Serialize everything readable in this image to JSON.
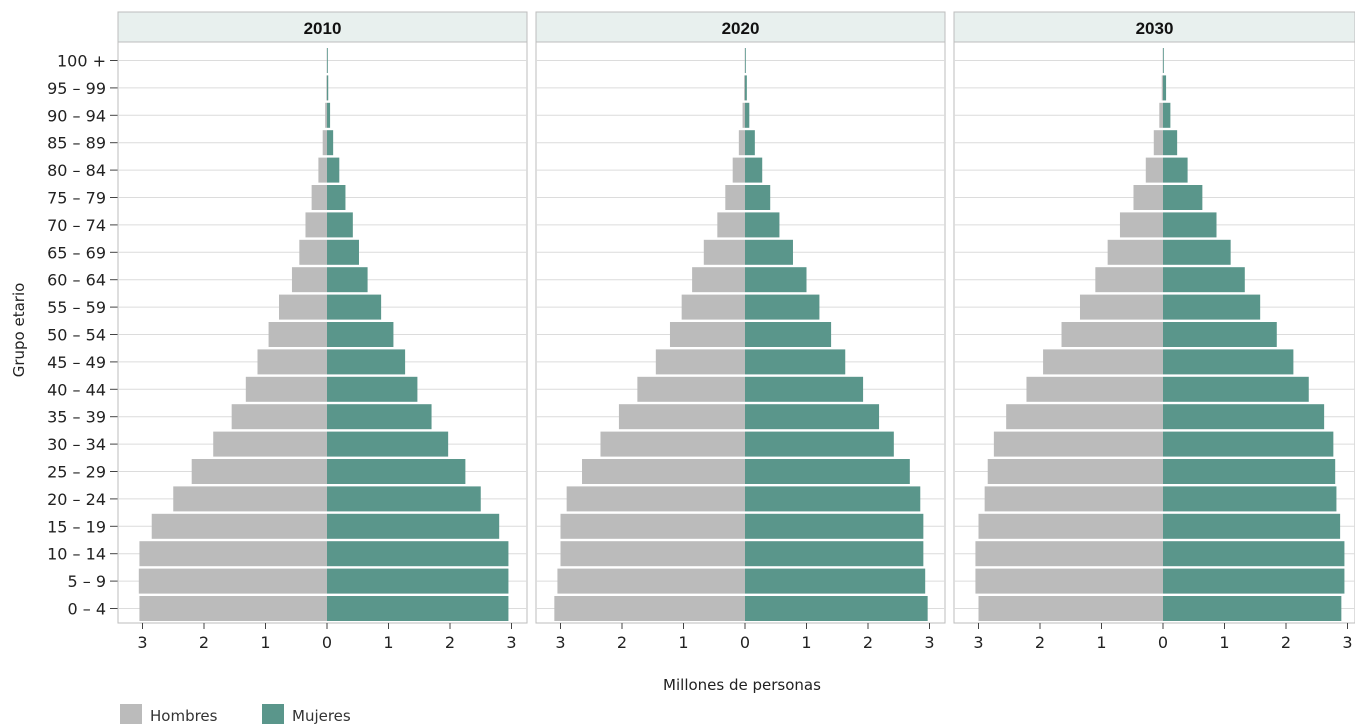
{
  "chart_data": {
    "type": "bar",
    "subtype": "population-pyramid",
    "xlabel": "Millones de personas",
    "ylabel": "Grupo etario",
    "categories": [
      "0 – 4",
      "5 – 9",
      "10 – 14",
      "15 – 19",
      "20 – 24",
      "25 – 29",
      "30 – 34",
      "35 – 39",
      "40 – 44",
      "45 – 49",
      "50 – 54",
      "55 – 59",
      "60 – 64",
      "65 – 69",
      "70 – 74",
      "75 – 79",
      "80 – 84",
      "85 – 89",
      "90 – 94",
      "95 – 99",
      "100 +"
    ],
    "x_ticks": [
      3,
      2,
      1,
      0,
      1,
      2,
      3
    ],
    "xlim": [
      -3.1,
      3.1
    ],
    "grid": true,
    "legend_position": "bottom-left",
    "legend": [
      {
        "label": "Hombres",
        "color": "#bbbbbb"
      },
      {
        "label": "Mujeres",
        "color": "#5a968b"
      }
    ],
    "colors": {
      "male": "#bbbbbb",
      "female": "#5a968b",
      "header": "#e8f0ee"
    },
    "panels": [
      {
        "title": "2010",
        "series": [
          {
            "name": "Hombres",
            "values": [
              3.05,
              3.06,
              3.05,
              2.85,
              2.5,
              2.2,
              1.85,
              1.55,
              1.32,
              1.13,
              0.95,
              0.78,
              0.57,
              0.45,
              0.35,
              0.25,
              0.14,
              0.07,
              0.03,
              0.01,
              0.005
            ]
          },
          {
            "name": "Mujeres",
            "values": [
              2.95,
              2.95,
              2.95,
              2.8,
              2.5,
              2.25,
              1.97,
              1.7,
              1.47,
              1.27,
              1.08,
              0.88,
              0.66,
              0.52,
              0.42,
              0.3,
              0.2,
              0.1,
              0.05,
              0.02,
              0.005
            ]
          }
        ]
      },
      {
        "title": "2020",
        "series": [
          {
            "name": "Hombres",
            "values": [
              3.1,
              3.05,
              3.0,
              3.0,
              2.9,
              2.65,
              2.35,
              2.05,
              1.75,
              1.45,
              1.22,
              1.03,
              0.86,
              0.67,
              0.45,
              0.32,
              0.2,
              0.1,
              0.04,
              0.015,
              0.005
            ]
          },
          {
            "name": "Mujeres",
            "values": [
              2.97,
              2.93,
              2.9,
              2.9,
              2.85,
              2.68,
              2.42,
              2.18,
              1.92,
              1.63,
              1.4,
              1.21,
              1.0,
              0.78,
              0.56,
              0.41,
              0.28,
              0.16,
              0.07,
              0.03,
              0.01
            ]
          }
        ]
      },
      {
        "title": "2030",
        "series": [
          {
            "name": "Hombres",
            "values": [
              3.0,
              3.05,
              3.05,
              3.0,
              2.9,
              2.85,
              2.75,
              2.55,
              2.22,
              1.95,
              1.65,
              1.35,
              1.1,
              0.9,
              0.7,
              0.48,
              0.28,
              0.15,
              0.06,
              0.02,
              0.005
            ]
          },
          {
            "name": "Mujeres",
            "values": [
              2.9,
              2.95,
              2.95,
              2.88,
              2.82,
              2.8,
              2.77,
              2.62,
              2.37,
              2.12,
              1.85,
              1.58,
              1.33,
              1.1,
              0.87,
              0.64,
              0.4,
              0.23,
              0.12,
              0.05,
              0.01
            ]
          }
        ]
      }
    ]
  }
}
